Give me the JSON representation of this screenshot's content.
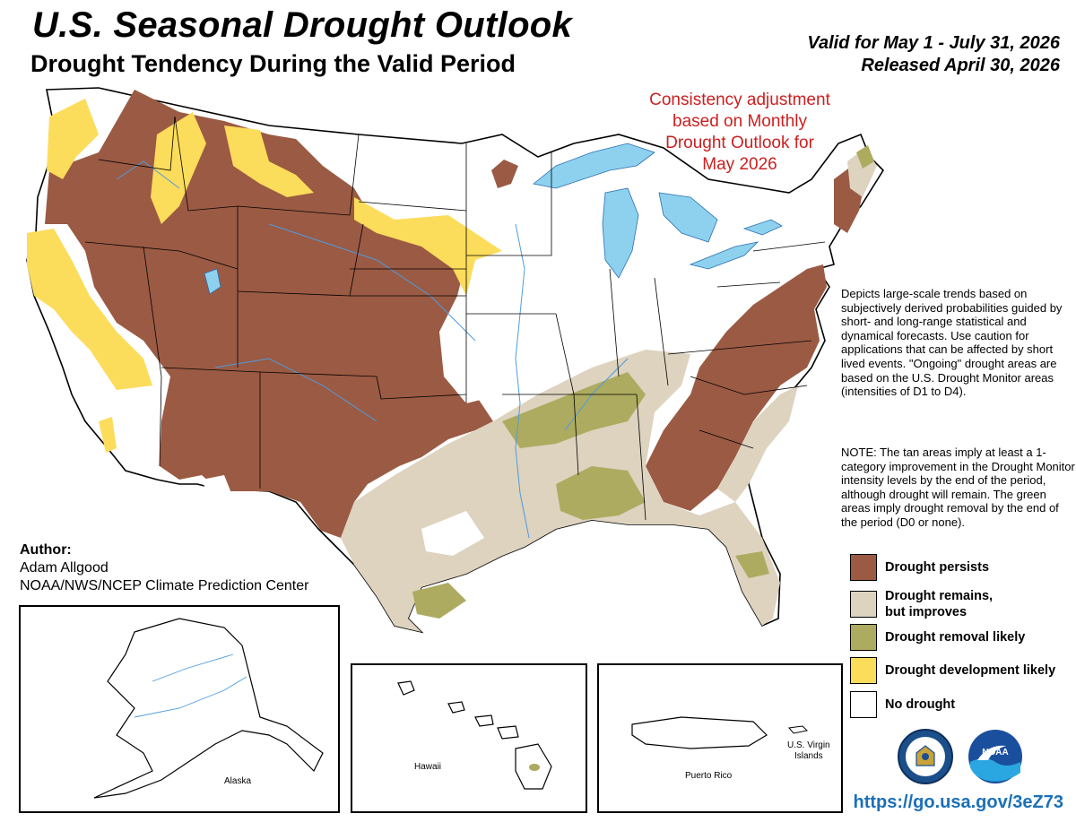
{
  "header": {
    "title": "U.S. Seasonal Drought Outlook",
    "subtitle": "Drought Tendency During the Valid Period",
    "valid_period": "Valid for May 1 - July 31, 2026",
    "released": "Released April 30, 2026"
  },
  "annotation": {
    "line1": "Consistency adjustment",
    "line2": "based on Monthly",
    "line3": "Drought Outlook for",
    "line4": "May 2026"
  },
  "description": "Depicts large-scale trends based on subjectively derived probabilities guided by short- and long-range statistical and dynamical forecasts. Use caution for applications that can be affected by short lived events. \"Ongoing\" drought areas are based on the U.S. Drought Monitor areas (intensities of D1 to D4).",
  "note": "NOTE: The tan areas imply at least a 1-category improvement in the Drought Monitor intensity levels by the end of the period, although drought will remain. The green areas imply drought removal by the end of the period (D0 or none).",
  "legend": {
    "persists": {
      "label": "Drought persists",
      "color": "#9b5a43"
    },
    "improves_line1": "Drought remains,",
    "improves_line2": "but improves",
    "improves_color": "#ddd3bf",
    "removal": {
      "label": "Drought removal likely",
      "color": "#adab5f"
    },
    "development": {
      "label": "Drought development likely",
      "color": "#fcdc5b"
    },
    "none": {
      "label": "No drought",
      "color": "#ffffff"
    }
  },
  "author": {
    "heading": "Author:",
    "name": "Adam Allgood",
    "org": "NOAA/NWS/NCEP Climate Prediction Center"
  },
  "insets": {
    "alaska": "Alaska",
    "hawaii": "Hawaii",
    "puerto_rico": "Puerto Rico",
    "vi_line1": "U.S. Virgin",
    "vi_line2": "Islands"
  },
  "logos": {
    "commerce": "commerce-seal",
    "noaa": "NOAA"
  },
  "url": "https://go.usa.gov/3eZ73",
  "colors": {
    "water": "#8dd1ee",
    "river": "#4d9be0",
    "title_red": "#cc1f1f",
    "url_blue": "#1b70b8"
  }
}
